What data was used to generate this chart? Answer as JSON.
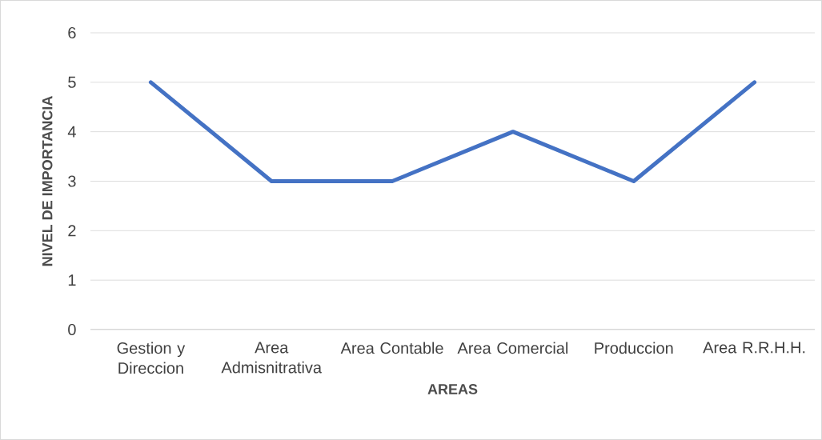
{
  "chart_data": {
    "type": "line",
    "xlabel": "AREAS",
    "ylabel": "NIVEL DE IMPORTANCIA",
    "categories": [
      "Gestion y Direccion",
      "Area Admisnitrativa",
      "Area Contable",
      "Area Comercial",
      "Produccion",
      "Area R.R.H.H."
    ],
    "values": [
      5,
      3,
      3,
      4,
      3,
      5
    ],
    "color": "#4472c4",
    "ylim": [
      0,
      6
    ],
    "yticks": [
      0,
      1,
      2,
      3,
      4,
      5,
      6
    ],
    "grid": "y",
    "marker": "none",
    "line_style": "solid"
  }
}
